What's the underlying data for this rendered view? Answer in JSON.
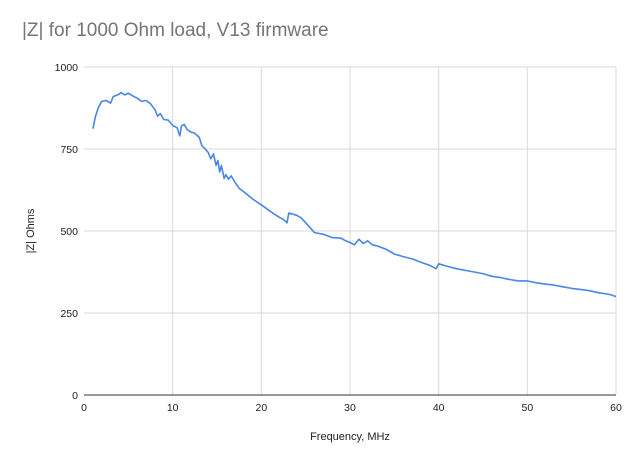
{
  "chart_data": {
    "type": "line",
    "title": "|Z| for 1000 Ohm load, V13 firmware",
    "xlabel": "Frequency, MHz",
    "ylabel": "|Z| Ohms",
    "xlim": [
      0,
      60
    ],
    "ylim": [
      0,
      1000
    ],
    "x_ticks": [
      "0",
      "10",
      "20",
      "30",
      "40",
      "50",
      "60"
    ],
    "y_ticks": [
      "0",
      "250",
      "500",
      "750",
      "1000"
    ],
    "grid": true,
    "legend": "none",
    "series": [
      {
        "color": "#4a86e8",
        "points": [
          [
            1.0,
            812
          ],
          [
            1.3,
            850
          ],
          [
            1.6,
            875
          ],
          [
            2.0,
            895
          ],
          [
            2.5,
            898
          ],
          [
            3.0,
            890
          ],
          [
            3.3,
            910
          ],
          [
            3.8,
            915
          ],
          [
            4.2,
            922
          ],
          [
            4.6,
            915
          ],
          [
            5.0,
            920
          ],
          [
            5.5,
            912
          ],
          [
            6.0,
            905
          ],
          [
            6.5,
            895
          ],
          [
            7.0,
            898
          ],
          [
            7.5,
            888
          ],
          [
            8.0,
            870
          ],
          [
            8.3,
            850
          ],
          [
            8.6,
            858
          ],
          [
            9.0,
            840
          ],
          [
            9.5,
            838
          ],
          [
            10.0,
            822
          ],
          [
            10.5,
            815
          ],
          [
            10.8,
            790
          ],
          [
            11.0,
            820
          ],
          [
            11.3,
            825
          ],
          [
            11.6,
            810
          ],
          [
            12.0,
            802
          ],
          [
            12.5,
            798
          ],
          [
            13.0,
            785
          ],
          [
            13.3,
            760
          ],
          [
            13.6,
            752
          ],
          [
            14.0,
            740
          ],
          [
            14.3,
            720
          ],
          [
            14.6,
            735
          ],
          [
            14.9,
            700
          ],
          [
            15.1,
            715
          ],
          [
            15.3,
            680
          ],
          [
            15.5,
            700
          ],
          [
            15.8,
            660
          ],
          [
            16.0,
            672
          ],
          [
            16.3,
            658
          ],
          [
            16.6,
            668
          ],
          [
            17.0,
            650
          ],
          [
            17.5,
            630
          ],
          [
            18.0,
            620
          ],
          [
            19.0,
            598
          ],
          [
            20.0,
            580
          ],
          [
            21.0,
            560
          ],
          [
            22.0,
            542
          ],
          [
            22.5,
            535
          ],
          [
            22.9,
            525
          ],
          [
            23.1,
            555
          ],
          [
            24.0,
            548
          ],
          [
            24.5,
            540
          ],
          [
            25.0,
            525
          ],
          [
            25.5,
            510
          ],
          [
            26.0,
            495
          ],
          [
            27.0,
            490
          ],
          [
            28.0,
            480
          ],
          [
            29.0,
            478
          ],
          [
            29.5,
            470
          ],
          [
            30.0,
            465
          ],
          [
            30.5,
            458
          ],
          [
            31.0,
            475
          ],
          [
            31.5,
            462
          ],
          [
            32.0,
            470
          ],
          [
            32.5,
            458
          ],
          [
            33.0,
            455
          ],
          [
            34.0,
            445
          ],
          [
            35.0,
            430
          ],
          [
            36.0,
            422
          ],
          [
            37.0,
            415
          ],
          [
            38.0,
            405
          ],
          [
            39.0,
            395
          ],
          [
            39.7,
            385
          ],
          [
            40.0,
            400
          ],
          [
            41.0,
            392
          ],
          [
            42.0,
            385
          ],
          [
            43.0,
            380
          ],
          [
            44.0,
            375
          ],
          [
            45.0,
            370
          ],
          [
            46.0,
            362
          ],
          [
            47.0,
            358
          ],
          [
            48.0,
            352
          ],
          [
            49.0,
            348
          ],
          [
            50.0,
            348
          ],
          [
            51.0,
            342
          ],
          [
            52.0,
            338
          ],
          [
            53.0,
            335
          ],
          [
            54.0,
            330
          ],
          [
            55.0,
            325
          ],
          [
            56.0,
            322
          ],
          [
            57.0,
            318
          ],
          [
            58.0,
            312
          ],
          [
            59.0,
            308
          ],
          [
            59.5,
            305
          ],
          [
            60.0,
            300
          ]
        ]
      }
    ]
  }
}
